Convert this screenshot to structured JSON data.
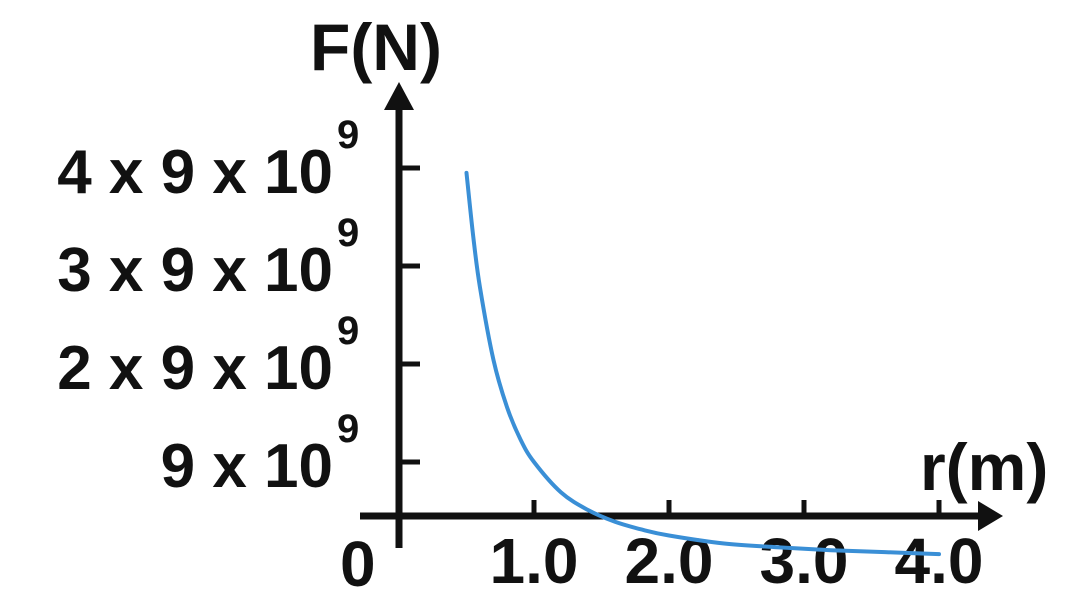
{
  "chart_data": {
    "type": "line",
    "xlabel": "r(m)",
    "ylabel": "F(N)",
    "origin_label": "0",
    "xlim": [
      0,
      4.3
    ],
    "ylim": [
      0,
      4.6
    ],
    "x_ticks": [
      {
        "value": 1.0,
        "label": "1.0"
      },
      {
        "value": 2.0,
        "label": "2.0"
      },
      {
        "value": 3.0,
        "label": "3.0"
      },
      {
        "value": 4.0,
        "label": "4.0"
      }
    ],
    "y_ticks": [
      {
        "value": 1,
        "label": "9 x 10",
        "exponent": "9"
      },
      {
        "value": 2,
        "label": "2 x 9 x 10",
        "exponent": "9"
      },
      {
        "value": 3,
        "label": "3 x 9 x 10",
        "exponent": "9"
      },
      {
        "value": 4,
        "label": "4 x 9 x 10",
        "exponent": "9"
      }
    ],
    "series": [
      {
        "color": "#3a8fd6",
        "points": [
          [
            0.5,
            3.95
          ],
          [
            0.55,
            3.3
          ],
          [
            0.6,
            2.78
          ],
          [
            0.7,
            2.04
          ],
          [
            0.8,
            1.56
          ],
          [
            0.9,
            1.23
          ],
          [
            1.0,
            1.0
          ],
          [
            1.2,
            0.69
          ],
          [
            1.4,
            0.51
          ],
          [
            1.6,
            0.39
          ],
          [
            1.8,
            0.31
          ],
          [
            2.0,
            0.25
          ],
          [
            2.4,
            0.17
          ],
          [
            2.8,
            0.13
          ],
          [
            3.2,
            0.1
          ],
          [
            3.6,
            0.08
          ],
          [
            4.0,
            0.06
          ]
        ]
      }
    ],
    "grid": false,
    "legend": "none"
  }
}
